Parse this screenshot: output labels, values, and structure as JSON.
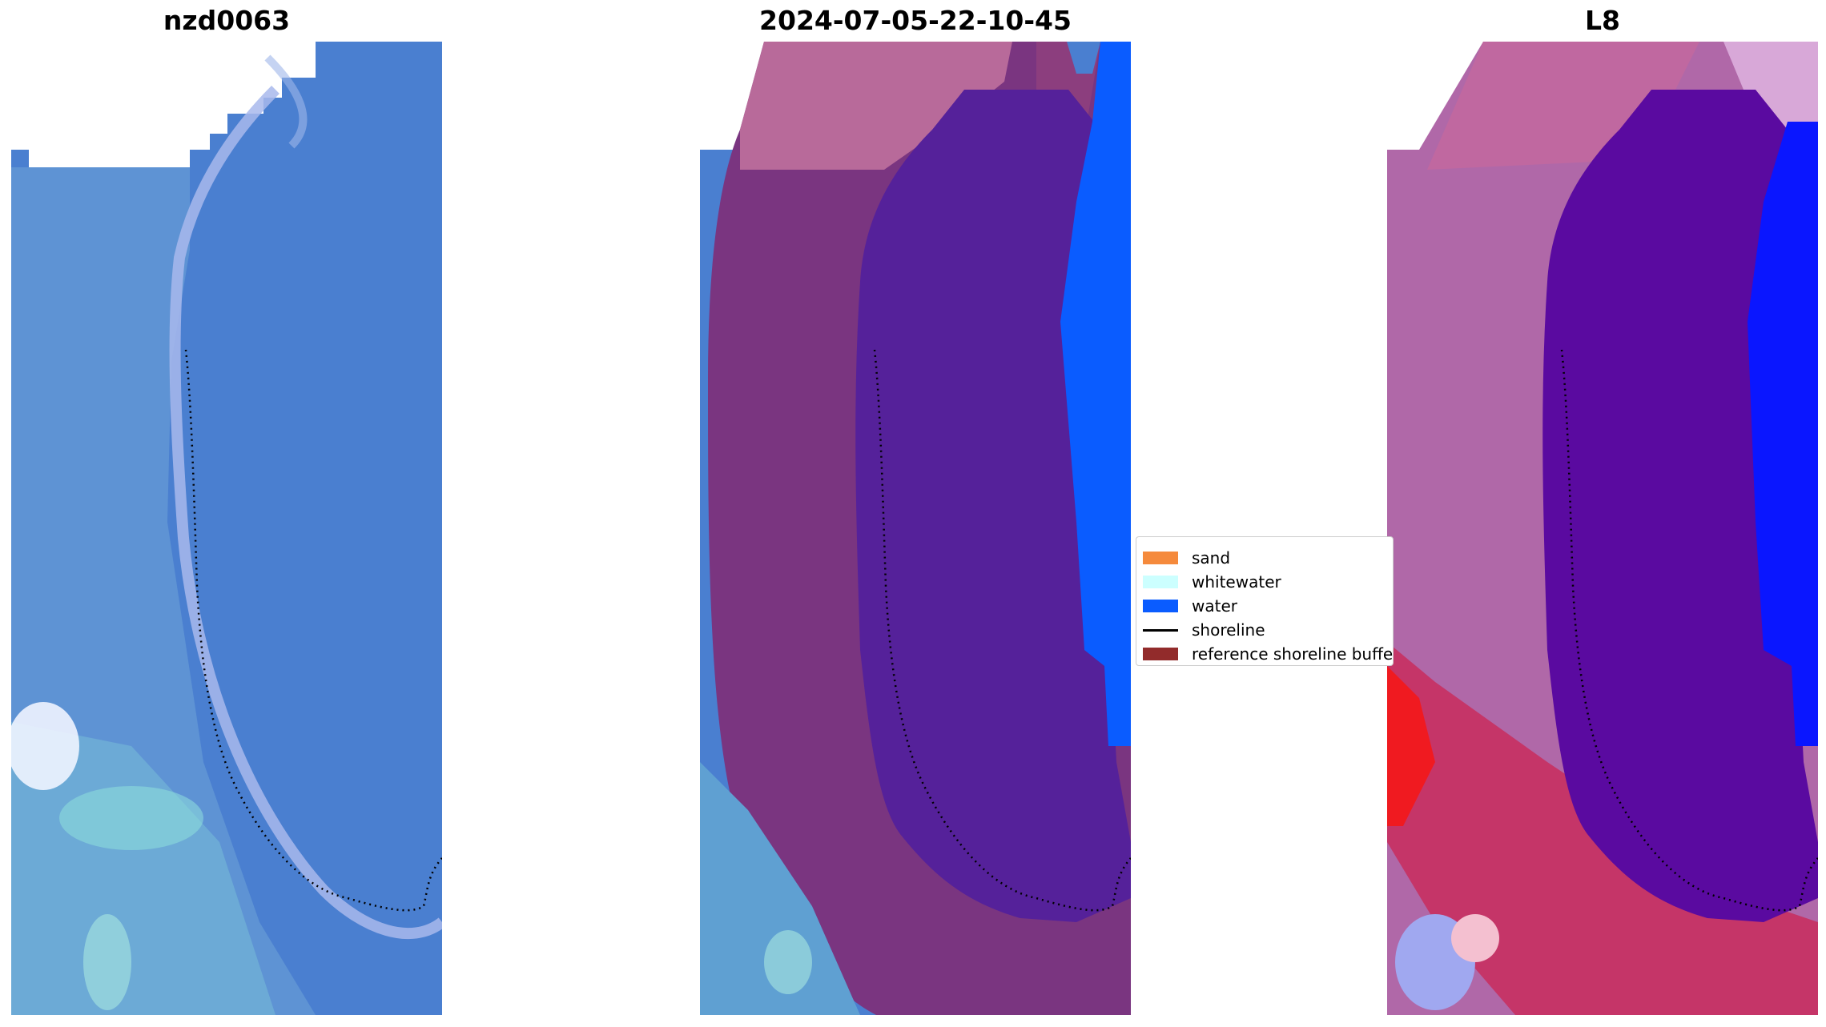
{
  "panels": [
    {
      "title": "nzd0063"
    },
    {
      "title": "2024-07-05-22-10-45"
    },
    {
      "title": "L8"
    }
  ],
  "legend": {
    "items": [
      {
        "label": "sand",
        "color": "#f58a3c",
        "kind": "patch"
      },
      {
        "label": "whitewater",
        "color": "#ccffff",
        "kind": "patch"
      },
      {
        "label": "water",
        "color": "#0a5cff",
        "kind": "patch"
      },
      {
        "label": "shoreline",
        "color": "#000000",
        "kind": "line"
      },
      {
        "label": "reference shoreline buffer",
        "color": "#922b2b",
        "kind": "patch"
      }
    ]
  },
  "colors": {
    "rgb_water": "#4a7fd0",
    "rgb_shallow": "#5aa0d8",
    "rgb_sand_line": "#a8b8ec",
    "class_buffer": "#7a3580",
    "class_land_pink": "#b86a9a",
    "class_inner": "#55219a",
    "class_water": "#0a5cff",
    "index_inner": "#5a0aa0",
    "index_water": "#0a16ff",
    "index_red": "#f01a20",
    "index_blue": "#a0a8f0"
  }
}
